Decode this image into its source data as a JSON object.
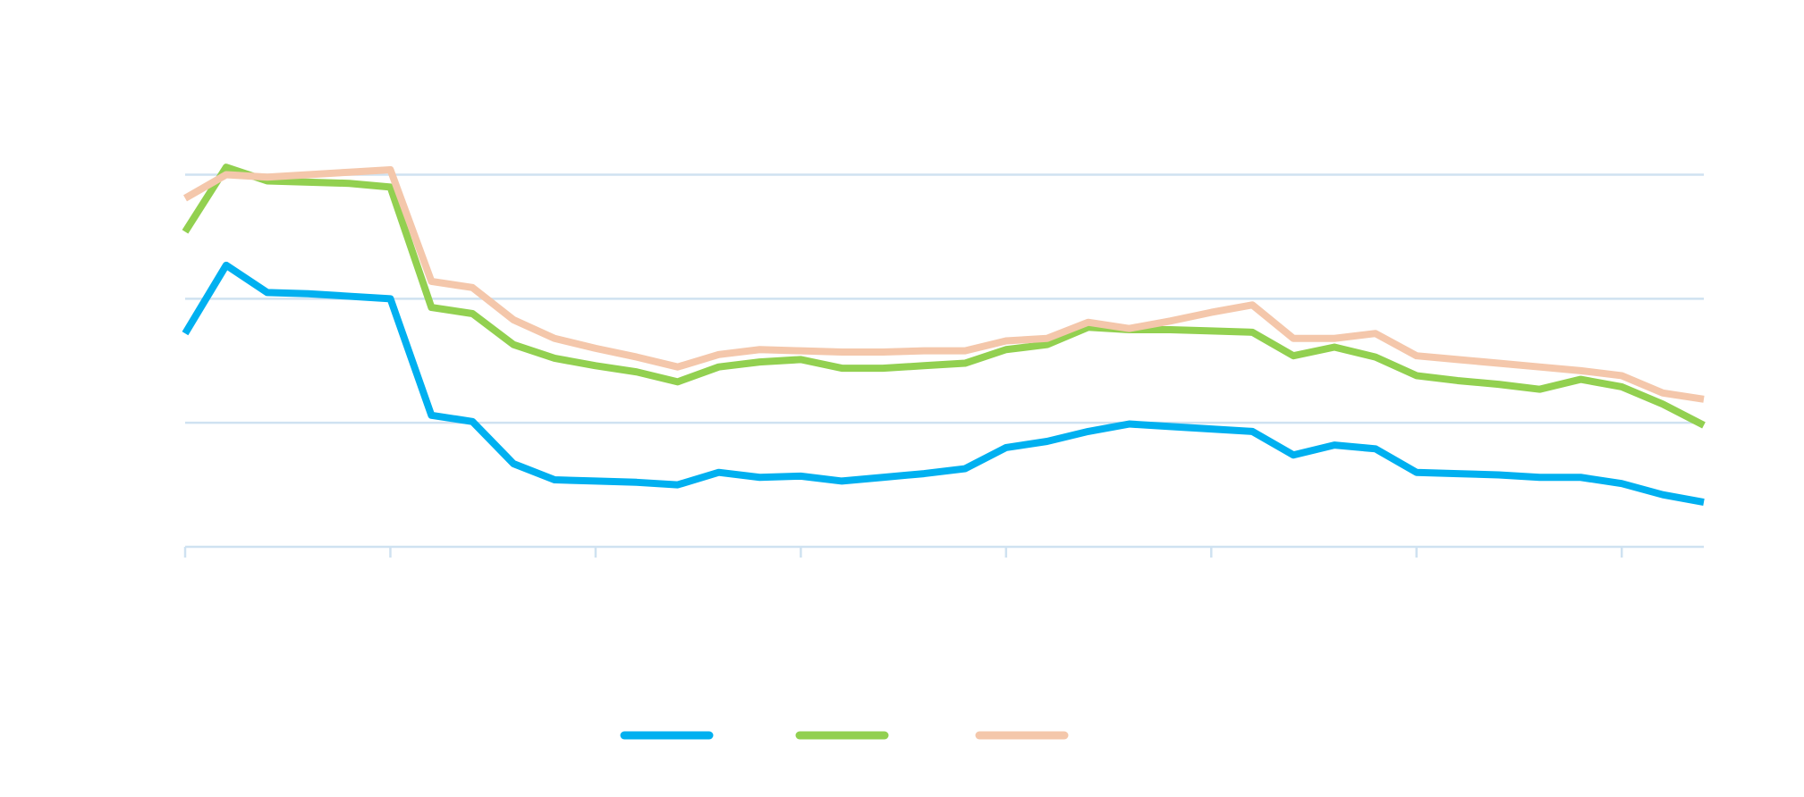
{
  "chart_data": {
    "type": "line",
    "x": [
      0,
      1,
      2,
      3,
      4,
      5,
      6,
      7,
      8,
      9,
      10,
      11,
      12,
      13,
      14,
      15,
      16,
      17,
      18,
      19,
      20,
      21,
      22,
      23,
      24,
      25,
      26,
      27,
      28,
      29,
      30,
      31,
      32,
      33,
      34,
      35,
      36,
      37
    ],
    "xlim": [
      0,
      37
    ],
    "xticks": [
      0,
      5,
      10,
      15,
      20,
      25,
      30,
      35
    ],
    "ylim": [
      0,
      3
    ],
    "yticks": [
      0,
      1,
      2,
      3
    ],
    "grid": true,
    "legend": "bottom",
    "series": [
      {
        "color": "#00b0f0",
        "values": [
          1.72,
          2.27,
          2.05,
          2.04,
          2.02,
          2.0,
          1.06,
          1.01,
          0.67,
          0.54,
          0.53,
          0.52,
          0.5,
          0.6,
          0.56,
          0.57,
          0.53,
          0.56,
          0.59,
          0.63,
          0.8,
          0.85,
          0.93,
          0.99,
          0.97,
          0.95,
          0.93,
          0.74,
          0.82,
          0.79,
          0.6,
          0.59,
          0.58,
          0.56,
          0.56,
          0.51,
          0.42,
          0.36
        ]
      },
      {
        "color": "#92d050",
        "values": [
          2.54,
          3.06,
          2.95,
          2.94,
          2.93,
          2.9,
          1.93,
          1.88,
          1.63,
          1.52,
          1.46,
          1.41,
          1.33,
          1.45,
          1.49,
          1.51,
          1.44,
          1.44,
          1.46,
          1.48,
          1.59,
          1.63,
          1.77,
          1.75,
          1.75,
          1.74,
          1.73,
          1.54,
          1.61,
          1.53,
          1.38,
          1.34,
          1.31,
          1.27,
          1.35,
          1.29,
          1.15,
          0.98
        ]
      },
      {
        "color": "#f4c7ab",
        "values": [
          2.81,
          3.0,
          2.98,
          3.0,
          3.02,
          3.04,
          2.14,
          2.09,
          1.83,
          1.68,
          1.6,
          1.53,
          1.45,
          1.55,
          1.59,
          1.58,
          1.57,
          1.57,
          1.58,
          1.58,
          1.66,
          1.68,
          1.81,
          1.76,
          1.82,
          1.89,
          1.95,
          1.68,
          1.68,
          1.72,
          1.54,
          1.51,
          1.48,
          1.45,
          1.42,
          1.38,
          1.24,
          1.19
        ]
      }
    ]
  }
}
